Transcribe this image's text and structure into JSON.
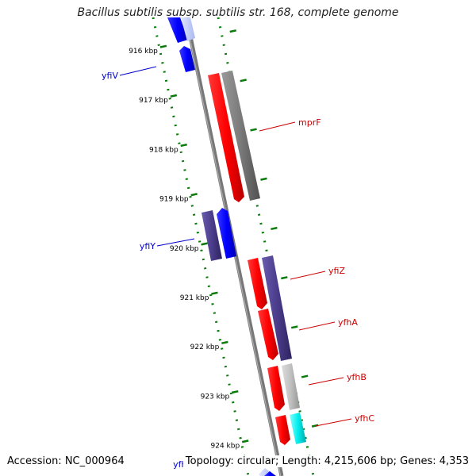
{
  "title": "Bacillus subtilis subsp. subtilis str. 168, complete genome",
  "footer": {
    "accession": "Accession: NC_000964",
    "summary": "Topology: circular; Length: 4,215,606 bp; Genes: 4,353"
  },
  "ticks": [
    {
      "label": "916 kbp"
    },
    {
      "label": "917 kbp"
    },
    {
      "label": "918 kbp"
    },
    {
      "label": "919 kbp"
    },
    {
      "label": "920 kbp"
    },
    {
      "label": "921 kbp"
    },
    {
      "label": "922 kbp"
    },
    {
      "label": "923 kbp"
    },
    {
      "label": "924 kbp"
    }
  ],
  "genes": [
    {
      "label": "yfiV",
      "color": "#0000cc"
    },
    {
      "label": "mprF",
      "color": "#cc0000"
    },
    {
      "label": "yfiY",
      "color": "#0000cc"
    },
    {
      "label": "yfiZ",
      "color": "#cc0000"
    },
    {
      "label": "yfhA",
      "color": "#cc0000"
    },
    {
      "label": "yfhB",
      "color": "#cc0000"
    },
    {
      "label": "yfhC",
      "color": "#cc0000"
    },
    {
      "label": "yfhD",
      "color": "#0000cc"
    }
  ],
  "colors": {
    "forward_cds": "#ff0000",
    "reverse_cds": "#0000ff",
    "gene_gray": "#707070",
    "gene_purple": "#4b3d8c",
    "gene_lightgray": "#bdbdbd",
    "gene_cyan": "#00e5e5",
    "backbone": "#808080",
    "tick_green": "#0a7a0a"
  }
}
